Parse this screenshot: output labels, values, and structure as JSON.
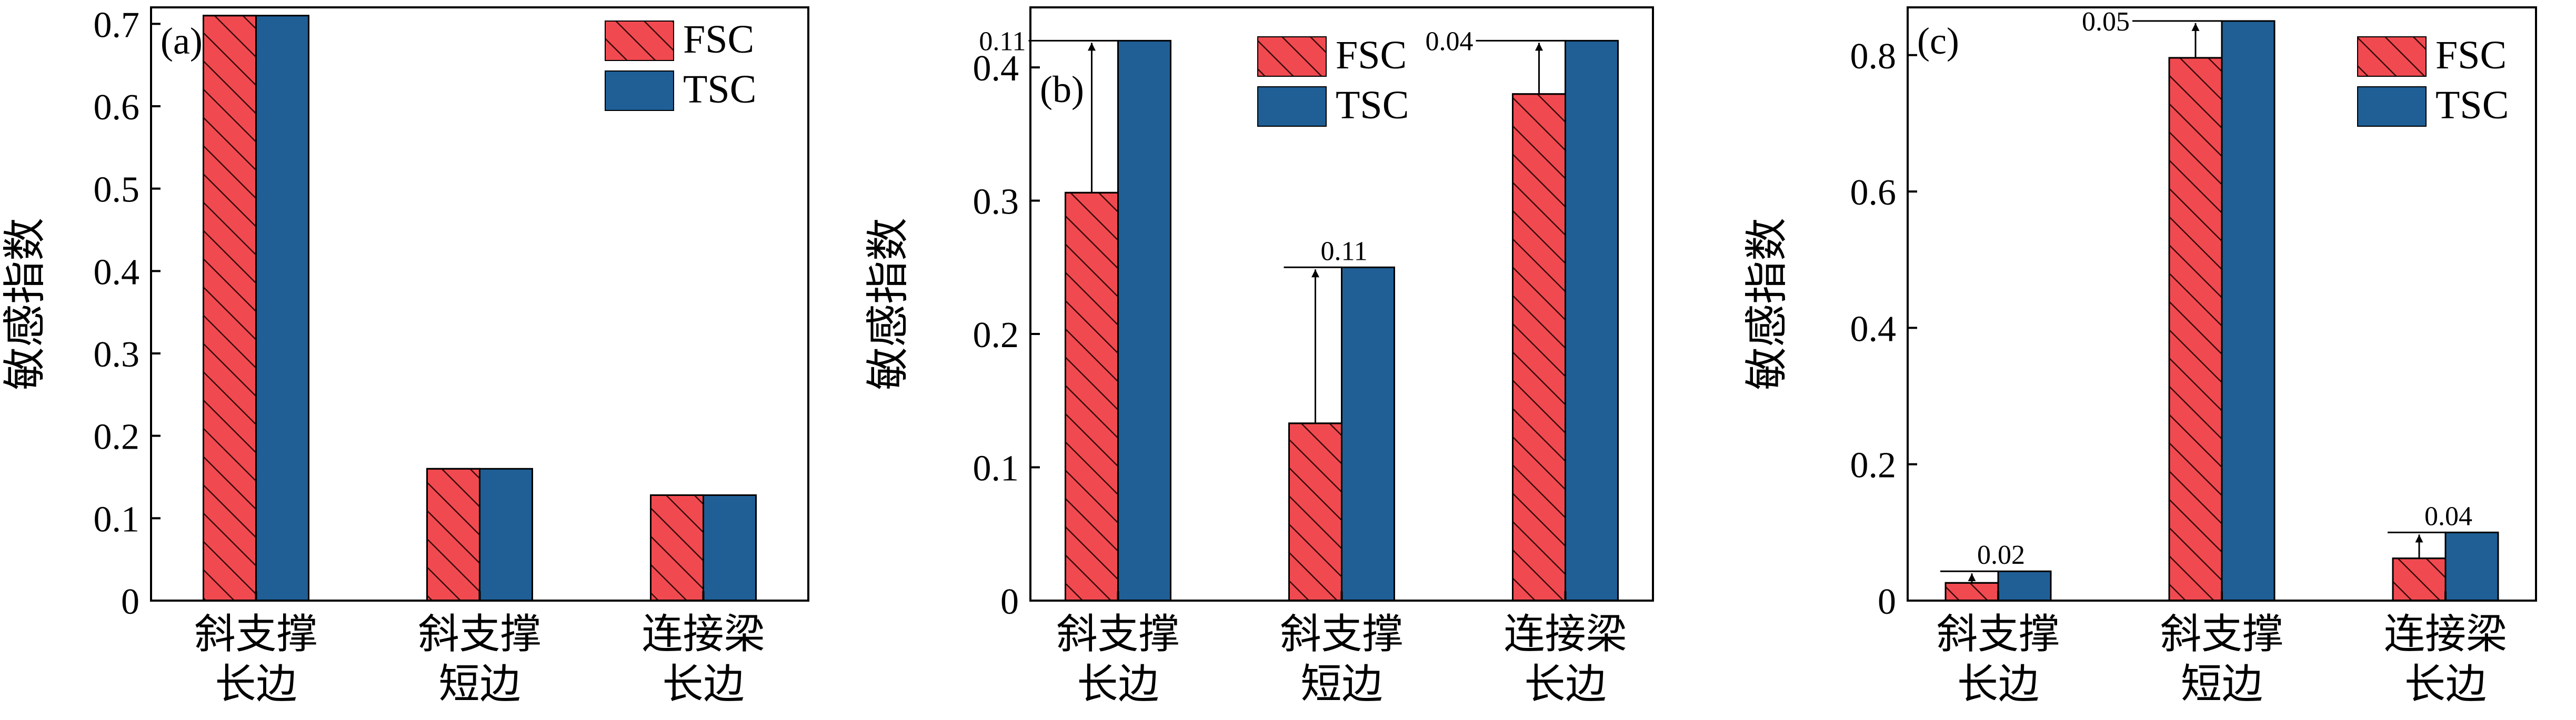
{
  "chart_data": [
    {
      "type": "bar",
      "panel_label": "(a)",
      "ylabel": "敏感指数",
      "categories": [
        [
          "斜支撑",
          "长边"
        ],
        [
          "斜支撑",
          "短边"
        ],
        [
          "连接梁",
          "长边"
        ]
      ],
      "series": [
        {
          "name": "FSC",
          "values": [
            0.71,
            0.16,
            0.128
          ]
        },
        {
          "name": "TSC",
          "values": [
            0.71,
            0.16,
            0.128
          ]
        }
      ],
      "ylim": [
        0,
        0.72
      ],
      "yticks": [
        0,
        0.1,
        0.2,
        0.3,
        0.4,
        0.5,
        0.6,
        0.7
      ],
      "ytick_labels": [
        "0",
        "0.1",
        "0.2",
        "0.3",
        "0.4",
        "0.5",
        "0.6",
        "0.7"
      ],
      "legend": "top-right",
      "annotations": []
    },
    {
      "type": "bar",
      "panel_label": "(b)",
      "ylabel": "敏感指数",
      "categories": [
        [
          "斜支撑",
          "长边"
        ],
        [
          "斜支撑",
          "短边"
        ],
        [
          "连接梁",
          "长边"
        ]
      ],
      "series": [
        {
          "name": "FSC",
          "values": [
            0.306,
            0.133,
            0.38
          ]
        },
        {
          "name": "TSC",
          "values": [
            0.42,
            0.25,
            0.42
          ]
        }
      ],
      "ylim": [
        0,
        0.445
      ],
      "yticks": [
        0.1,
        0.2,
        0.3,
        0.4
      ],
      "ytick_labels": [
        "0.1",
        "0.2",
        "0.3",
        "0.4"
      ],
      "zero_label": "0",
      "legend": "top-center",
      "annotations": [
        {
          "category_index": 0,
          "label": "0.11",
          "label_side": "left"
        },
        {
          "category_index": 1,
          "label": "0.11",
          "label_side": "right"
        },
        {
          "category_index": 2,
          "label": "0.04",
          "label_side": "left"
        }
      ]
    },
    {
      "type": "bar",
      "panel_label": "(c)",
      "ylabel": "敏感指数",
      "categories": [
        [
          "斜支撑",
          "长边"
        ],
        [
          "斜支撑",
          "短边"
        ],
        [
          "连接梁",
          "长边"
        ]
      ],
      "series": [
        {
          "name": "FSC",
          "values": [
            0.026,
            0.796,
            0.062
          ]
        },
        {
          "name": "TSC",
          "values": [
            0.043,
            0.85,
            0.1
          ]
        }
      ],
      "ylim": [
        0,
        0.87
      ],
      "yticks": [
        0.2,
        0.4,
        0.6,
        0.8
      ],
      "ytick_labels": [
        "0.2",
        "0.4",
        "0.6",
        "0.8"
      ],
      "zero_label": "0",
      "legend": "top-right",
      "annotations": [
        {
          "category_index": 0,
          "label": "0.02",
          "label_side": "right"
        },
        {
          "category_index": 1,
          "label": "0.05",
          "label_side": "left"
        },
        {
          "category_index": 2,
          "label": "0.04",
          "label_side": "right"
        }
      ]
    }
  ],
  "colors": {
    "fsc": "#f04a50",
    "tsc": "#1f5f96",
    "hatch": "#3a0a0a",
    "axis": "#000000"
  }
}
